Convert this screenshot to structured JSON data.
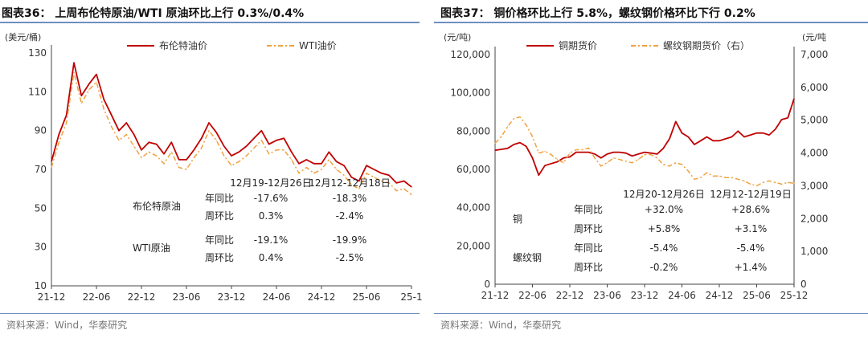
{
  "left": {
    "title": "图表36： 上周布伦特原油/WTI 原油环比上行 0.3%/0.4%",
    "source": "资料来源：Wind，华泰研究",
    "chart_data": {
      "type": "line",
      "ylabel": "(美元/桶)",
      "ylim": [
        10,
        130
      ],
      "yticks": [
        "130",
        "110",
        "90",
        "70",
        "50",
        "30",
        "10"
      ],
      "xticks": [
        "21-12",
        "22-06",
        "22-12",
        "23-06",
        "23-12",
        "24-06",
        "24-12",
        "25-06",
        "25-1"
      ],
      "xrange": [
        "2021-12",
        "2025-12"
      ],
      "series": [
        {
          "name": "布伦特油价",
          "color": "#c00000",
          "dash": "",
          "x": [
            "2021-12",
            "2022-01",
            "2022-02",
            "2022-03",
            "2022-04",
            "2022-05",
            "2022-06",
            "2022-07",
            "2022-08",
            "2022-09",
            "2022-10",
            "2022-11",
            "2022-12",
            "2023-01",
            "2023-02",
            "2023-03",
            "2023-04",
            "2023-05",
            "2023-06",
            "2023-07",
            "2023-08",
            "2023-09",
            "2023-10",
            "2023-11",
            "2023-12",
            "2024-01",
            "2024-02",
            "2024-03",
            "2024-04",
            "2024-05",
            "2024-06",
            "2024-07",
            "2024-08",
            "2024-09",
            "2024-10",
            "2024-11",
            "2024-12",
            "2025-01",
            "2025-02",
            "2025-03",
            "2025-04",
            "2025-05",
            "2025-06",
            "2025-07",
            "2025-08",
            "2025-09",
            "2025-10",
            "2025-11",
            "2025-12"
          ],
          "values": [
            74,
            88,
            98,
            125,
            108,
            114,
            119,
            106,
            98,
            90,
            94,
            88,
            80,
            84,
            83,
            78,
            84,
            75,
            75,
            80,
            86,
            94,
            89,
            82,
            77,
            79,
            82,
            86,
            90,
            83,
            85,
            86,
            79,
            73,
            75,
            73,
            73,
            79,
            74,
            72,
            66,
            64,
            72,
            70,
            68,
            67,
            63,
            64,
            61
          ]
        },
        {
          "name": "WTI油价",
          "color": "#f0a040",
          "dash": "6,3,2,3",
          "x": [
            "2021-12",
            "2022-01",
            "2022-02",
            "2022-03",
            "2022-04",
            "2022-05",
            "2022-06",
            "2022-07",
            "2022-08",
            "2022-09",
            "2022-10",
            "2022-11",
            "2022-12",
            "2023-01",
            "2023-02",
            "2023-03",
            "2023-04",
            "2023-05",
            "2023-06",
            "2023-07",
            "2023-08",
            "2023-09",
            "2023-10",
            "2023-11",
            "2023-12",
            "2024-01",
            "2024-02",
            "2024-03",
            "2024-04",
            "2024-05",
            "2024-06",
            "2024-07",
            "2024-08",
            "2024-09",
            "2024-10",
            "2024-11",
            "2024-12",
            "2025-01",
            "2025-02",
            "2025-03",
            "2025-04",
            "2025-05",
            "2025-06",
            "2025-07",
            "2025-08",
            "2025-09",
            "2025-10",
            "2025-11",
            "2025-12"
          ],
          "values": [
            71,
            84,
            94,
            120,
            104,
            111,
            115,
            101,
            92,
            85,
            88,
            82,
            76,
            79,
            77,
            73,
            79,
            71,
            70,
            76,
            81,
            90,
            85,
            77,
            72,
            74,
            77,
            81,
            85,
            78,
            80,
            80,
            75,
            68,
            71,
            68,
            70,
            75,
            70,
            67,
            62,
            60,
            68,
            66,
            64,
            63,
            59,
            60,
            57
          ]
        }
      ]
    },
    "table": {
      "header": [
        "12月19-12月26日",
        "12月12-12月18日"
      ],
      "rows": [
        {
          "group": "布伦特原油",
          "label": "年同比",
          "v1": "-17.6%",
          "v2": "-18.3%"
        },
        {
          "group": "",
          "label": "周环比",
          "v1": "0.3%",
          "v2": "-2.4%"
        },
        {
          "group": "WTI原油",
          "label": "年同比",
          "v1": "-19.1%",
          "v2": "-19.9%"
        },
        {
          "group": "",
          "label": "周环比",
          "v1": "0.4%",
          "v2": "-2.5%"
        }
      ]
    }
  },
  "right": {
    "title": "图表37： 铜价格环比上行 5.8%，螺纹钢价格环比下行 0.2%",
    "source": "资料来源：Wind，华泰研究",
    "chart_data": {
      "type": "line",
      "ylabel": "(元/吨)",
      "ylabel_right": "(元/吨",
      "ylim": [
        0,
        120000
      ],
      "ylim_right": [
        0,
        7000
      ],
      "yticks": [
        "120,000",
        "100,000",
        "80,000",
        "60,000",
        "40,000",
        "20,000",
        "0"
      ],
      "yticks_right": [
        "7,000",
        "6,000",
        "5,000",
        "4,000",
        "3,000",
        "2,000",
        "1,000",
        "0"
      ],
      "xticks": [
        "21-12",
        "22-06",
        "22-12",
        "23-06",
        "23-12",
        "24-06",
        "24-12",
        "25-06",
        "25-12"
      ],
      "xrange": [
        "2021-12",
        "2025-12"
      ],
      "series": [
        {
          "name": "铜期货价",
          "color": "#c00000",
          "dash": "",
          "axis": "left",
          "x": [
            "2021-12",
            "2022-01",
            "2022-02",
            "2022-03",
            "2022-04",
            "2022-05",
            "2022-06",
            "2022-07",
            "2022-08",
            "2022-09",
            "2022-10",
            "2022-11",
            "2022-12",
            "2023-01",
            "2023-02",
            "2023-03",
            "2023-04",
            "2023-05",
            "2023-06",
            "2023-07",
            "2023-08",
            "2023-09",
            "2023-10",
            "2023-11",
            "2023-12",
            "2024-01",
            "2024-02",
            "2024-03",
            "2024-04",
            "2024-05",
            "2024-06",
            "2024-07",
            "2024-08",
            "2024-09",
            "2024-10",
            "2024-11",
            "2024-12",
            "2025-01",
            "2025-02",
            "2025-03",
            "2025-04",
            "2025-05",
            "2025-06",
            "2025-07",
            "2025-08",
            "2025-09",
            "2025-10",
            "2025-11",
            "2025-12"
          ],
          "values": [
            70000,
            70500,
            71000,
            73000,
            74000,
            72000,
            66000,
            57000,
            62000,
            63000,
            64000,
            66000,
            66500,
            69000,
            69000,
            69000,
            68000,
            66000,
            68000,
            69000,
            69000,
            68500,
            67000,
            68000,
            69000,
            68500,
            68000,
            71000,
            76000,
            85000,
            79000,
            77000,
            73000,
            75000,
            77000,
            75000,
            75000,
            76000,
            77000,
            80000,
            77000,
            78000,
            79000,
            79000,
            78000,
            81000,
            86000,
            87000,
            97000
          ]
        },
        {
          "name": "螺纹钢期货价（右）",
          "color": "#f0a040",
          "dash": "6,3,2,3",
          "axis": "right",
          "x": [
            "2021-12",
            "2022-01",
            "2022-02",
            "2022-03",
            "2022-04",
            "2022-05",
            "2022-06",
            "2022-07",
            "2022-08",
            "2022-09",
            "2022-10",
            "2022-11",
            "2022-12",
            "2023-01",
            "2023-02",
            "2023-03",
            "2023-04",
            "2023-05",
            "2023-06",
            "2023-07",
            "2023-08",
            "2023-09",
            "2023-10",
            "2023-11",
            "2023-12",
            "2024-01",
            "2024-02",
            "2024-03",
            "2024-04",
            "2024-05",
            "2024-06",
            "2024-07",
            "2024-08",
            "2024-09",
            "2024-10",
            "2024-11",
            "2024-12",
            "2025-01",
            "2025-02",
            "2025-03",
            "2025-04",
            "2025-05",
            "2025-06",
            "2025-07",
            "2025-08",
            "2025-09",
            "2025-10",
            "2025-11",
            "2025-12"
          ],
          "values": [
            4300,
            4500,
            4800,
            5050,
            5100,
            4850,
            4500,
            4000,
            4050,
            3950,
            3800,
            3700,
            4000,
            4100,
            4100,
            4150,
            3850,
            3600,
            3700,
            3850,
            3800,
            3750,
            3700,
            3800,
            3950,
            3950,
            3850,
            3650,
            3600,
            3700,
            3650,
            3450,
            3200,
            3250,
            3400,
            3300,
            3300,
            3250,
            3250,
            3200,
            3150,
            3050,
            3000,
            3100,
            3150,
            3100,
            3050,
            3100,
            3080
          ]
        }
      ]
    },
    "table": {
      "header": [
        "12月20-12月26日",
        "12月12-12月19日"
      ],
      "rows": [
        {
          "group": "铜",
          "label": "年同比",
          "v1": "+32.0%",
          "v2": "+28.6%"
        },
        {
          "group": "",
          "label": "周环比",
          "v1": "+5.8%",
          "v2": "+3.1%"
        },
        {
          "group": "螺纹钢",
          "label": "年同比",
          "v1": "-5.4%",
          "v2": "-5.4%"
        },
        {
          "group": "",
          "label": "周环比",
          "v1": "-0.2%",
          "v2": "+1.4%"
        }
      ]
    }
  }
}
